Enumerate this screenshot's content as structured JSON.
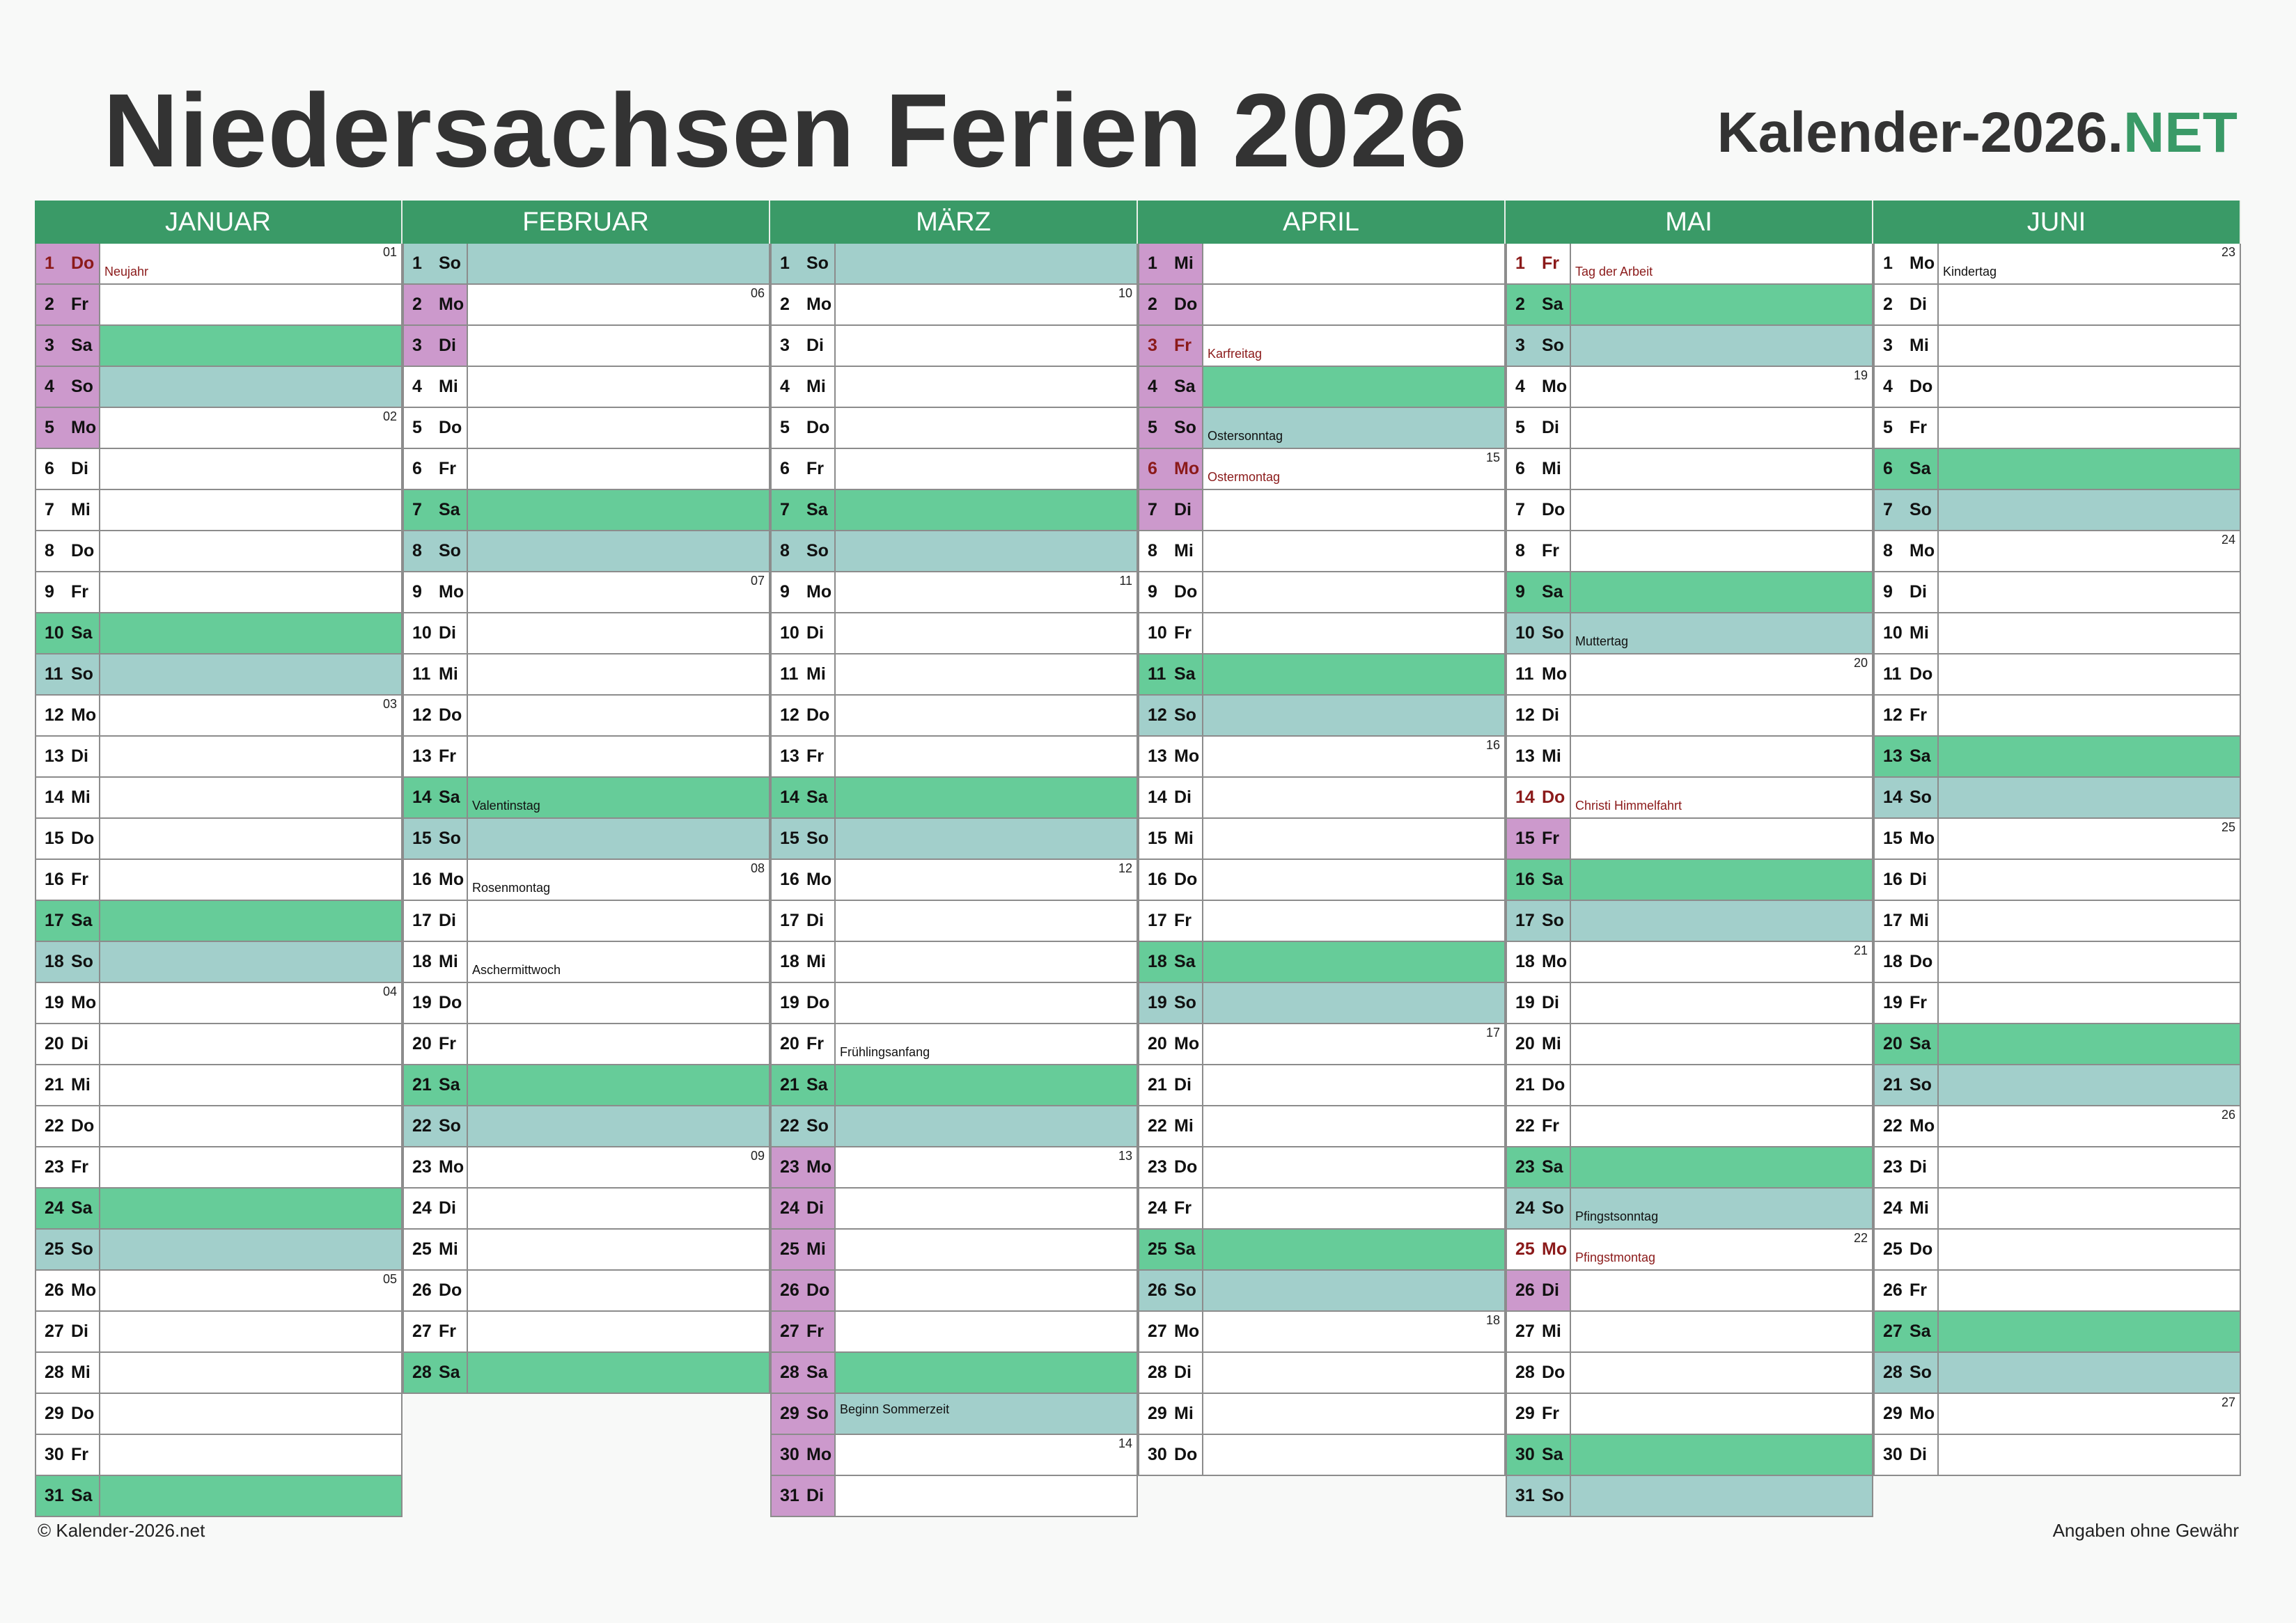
{
  "title": "Niedersachsen Ferien 2026",
  "brand": {
    "main": "Kalender-2026.",
    "accent": "NET"
  },
  "footer": {
    "left": "© Kalender-2026.net",
    "right": "Angaben ohne Gewähr"
  },
  "colors": {
    "header": "#3a9a67",
    "saturday": "#66cc99",
    "sunday": "#a2cfcb",
    "ferien": "#cc99cc",
    "holiday_text": "#8b1a1a"
  },
  "months": [
    {
      "name": "JANUAR",
      "days": [
        {
          "d": "1",
          "w": "Do",
          "ferien": true,
          "hol": true,
          "note": "Neujahr",
          "week": "01"
        },
        {
          "d": "2",
          "w": "Fr",
          "ferien": true
        },
        {
          "d": "3",
          "w": "Sa",
          "ferien": true
        },
        {
          "d": "4",
          "w": "So",
          "ferien": true
        },
        {
          "d": "5",
          "w": "Mo",
          "ferien": true,
          "week": "02"
        },
        {
          "d": "6",
          "w": "Di"
        },
        {
          "d": "7",
          "w": "Mi"
        },
        {
          "d": "8",
          "w": "Do"
        },
        {
          "d": "9",
          "w": "Fr"
        },
        {
          "d": "10",
          "w": "Sa"
        },
        {
          "d": "11",
          "w": "So"
        },
        {
          "d": "12",
          "w": "Mo",
          "week": "03"
        },
        {
          "d": "13",
          "w": "Di"
        },
        {
          "d": "14",
          "w": "Mi"
        },
        {
          "d": "15",
          "w": "Do"
        },
        {
          "d": "16",
          "w": "Fr"
        },
        {
          "d": "17",
          "w": "Sa"
        },
        {
          "d": "18",
          "w": "So"
        },
        {
          "d": "19",
          "w": "Mo",
          "week": "04"
        },
        {
          "d": "20",
          "w": "Di"
        },
        {
          "d": "21",
          "w": "Mi"
        },
        {
          "d": "22",
          "w": "Do"
        },
        {
          "d": "23",
          "w": "Fr"
        },
        {
          "d": "24",
          "w": "Sa"
        },
        {
          "d": "25",
          "w": "So"
        },
        {
          "d": "26",
          "w": "Mo",
          "week": "05"
        },
        {
          "d": "27",
          "w": "Di"
        },
        {
          "d": "28",
          "w": "Mi"
        },
        {
          "d": "29",
          "w": "Do"
        },
        {
          "d": "30",
          "w": "Fr"
        },
        {
          "d": "31",
          "w": "Sa"
        }
      ]
    },
    {
      "name": "FEBRUAR",
      "days": [
        {
          "d": "1",
          "w": "So"
        },
        {
          "d": "2",
          "w": "Mo",
          "ferien": true,
          "week": "06"
        },
        {
          "d": "3",
          "w": "Di",
          "ferien": true
        },
        {
          "d": "4",
          "w": "Mi"
        },
        {
          "d": "5",
          "w": "Do"
        },
        {
          "d": "6",
          "w": "Fr"
        },
        {
          "d": "7",
          "w": "Sa"
        },
        {
          "d": "8",
          "w": "So"
        },
        {
          "d": "9",
          "w": "Mo",
          "week": "07"
        },
        {
          "d": "10",
          "w": "Di"
        },
        {
          "d": "11",
          "w": "Mi"
        },
        {
          "d": "12",
          "w": "Do"
        },
        {
          "d": "13",
          "w": "Fr"
        },
        {
          "d": "14",
          "w": "Sa",
          "note": "Valentinstag"
        },
        {
          "d": "15",
          "w": "So"
        },
        {
          "d": "16",
          "w": "Mo",
          "note": "Rosenmontag",
          "week": "08"
        },
        {
          "d": "17",
          "w": "Di"
        },
        {
          "d": "18",
          "w": "Mi",
          "note": "Aschermittwoch"
        },
        {
          "d": "19",
          "w": "Do"
        },
        {
          "d": "20",
          "w": "Fr"
        },
        {
          "d": "21",
          "w": "Sa"
        },
        {
          "d": "22",
          "w": "So"
        },
        {
          "d": "23",
          "w": "Mo",
          "week": "09"
        },
        {
          "d": "24",
          "w": "Di"
        },
        {
          "d": "25",
          "w": "Mi"
        },
        {
          "d": "26",
          "w": "Do"
        },
        {
          "d": "27",
          "w": "Fr"
        },
        {
          "d": "28",
          "w": "Sa"
        }
      ]
    },
    {
      "name": "MÄRZ",
      "days": [
        {
          "d": "1",
          "w": "So"
        },
        {
          "d": "2",
          "w": "Mo",
          "week": "10"
        },
        {
          "d": "3",
          "w": "Di"
        },
        {
          "d": "4",
          "w": "Mi"
        },
        {
          "d": "5",
          "w": "Do"
        },
        {
          "d": "6",
          "w": "Fr"
        },
        {
          "d": "7",
          "w": "Sa"
        },
        {
          "d": "8",
          "w": "So"
        },
        {
          "d": "9",
          "w": "Mo",
          "week": "11"
        },
        {
          "d": "10",
          "w": "Di"
        },
        {
          "d": "11",
          "w": "Mi"
        },
        {
          "d": "12",
          "w": "Do"
        },
        {
          "d": "13",
          "w": "Fr"
        },
        {
          "d": "14",
          "w": "Sa"
        },
        {
          "d": "15",
          "w": "So"
        },
        {
          "d": "16",
          "w": "Mo",
          "week": "12"
        },
        {
          "d": "17",
          "w": "Di"
        },
        {
          "d": "18",
          "w": "Mi"
        },
        {
          "d": "19",
          "w": "Do"
        },
        {
          "d": "20",
          "w": "Fr",
          "note": "Frühlingsanfang"
        },
        {
          "d": "21",
          "w": "Sa"
        },
        {
          "d": "22",
          "w": "So"
        },
        {
          "d": "23",
          "w": "Mo",
          "ferien": true,
          "week": "13"
        },
        {
          "d": "24",
          "w": "Di",
          "ferien": true
        },
        {
          "d": "25",
          "w": "Mi",
          "ferien": true
        },
        {
          "d": "26",
          "w": "Do",
          "ferien": true
        },
        {
          "d": "27",
          "w": "Fr",
          "ferien": true
        },
        {
          "d": "28",
          "w": "Sa",
          "ferien": true
        },
        {
          "d": "29",
          "w": "So",
          "ferien": true,
          "note": "Beginn Sommerzeit",
          "two": true
        },
        {
          "d": "30",
          "w": "Mo",
          "ferien": true,
          "week": "14"
        },
        {
          "d": "31",
          "w": "Di",
          "ferien": true
        }
      ]
    },
    {
      "name": "APRIL",
      "days": [
        {
          "d": "1",
          "w": "Mi",
          "ferien": true
        },
        {
          "d": "2",
          "w": "Do",
          "ferien": true
        },
        {
          "d": "3",
          "w": "Fr",
          "ferien": true,
          "hol": true,
          "note": "Karfreitag"
        },
        {
          "d": "4",
          "w": "Sa",
          "ferien": true
        },
        {
          "d": "5",
          "w": "So",
          "ferien": true,
          "note": "Ostersonntag"
        },
        {
          "d": "6",
          "w": "Mo",
          "ferien": true,
          "hol": true,
          "note": "Ostermontag",
          "week": "15"
        },
        {
          "d": "7",
          "w": "Di",
          "ferien": true
        },
        {
          "d": "8",
          "w": "Mi"
        },
        {
          "d": "9",
          "w": "Do"
        },
        {
          "d": "10",
          "w": "Fr"
        },
        {
          "d": "11",
          "w": "Sa"
        },
        {
          "d": "12",
          "w": "So"
        },
        {
          "d": "13",
          "w": "Mo",
          "week": "16"
        },
        {
          "d": "14",
          "w": "Di"
        },
        {
          "d": "15",
          "w": "Mi"
        },
        {
          "d": "16",
          "w": "Do"
        },
        {
          "d": "17",
          "w": "Fr"
        },
        {
          "d": "18",
          "w": "Sa"
        },
        {
          "d": "19",
          "w": "So"
        },
        {
          "d": "20",
          "w": "Mo",
          "week": "17"
        },
        {
          "d": "21",
          "w": "Di"
        },
        {
          "d": "22",
          "w": "Mi"
        },
        {
          "d": "23",
          "w": "Do"
        },
        {
          "d": "24",
          "w": "Fr"
        },
        {
          "d": "25",
          "w": "Sa"
        },
        {
          "d": "26",
          "w": "So"
        },
        {
          "d": "27",
          "w": "Mo",
          "week": "18"
        },
        {
          "d": "28",
          "w": "Di"
        },
        {
          "d": "29",
          "w": "Mi"
        },
        {
          "d": "30",
          "w": "Do"
        }
      ]
    },
    {
      "name": "MAI",
      "days": [
        {
          "d": "1",
          "w": "Fr",
          "hol": true,
          "note": "Tag der Arbeit"
        },
        {
          "d": "2",
          "w": "Sa"
        },
        {
          "d": "3",
          "w": "So"
        },
        {
          "d": "4",
          "w": "Mo",
          "week": "19"
        },
        {
          "d": "5",
          "w": "Di"
        },
        {
          "d": "6",
          "w": "Mi"
        },
        {
          "d": "7",
          "w": "Do"
        },
        {
          "d": "8",
          "w": "Fr"
        },
        {
          "d": "9",
          "w": "Sa"
        },
        {
          "d": "10",
          "w": "So",
          "note": "Muttertag"
        },
        {
          "d": "11",
          "w": "Mo",
          "week": "20"
        },
        {
          "d": "12",
          "w": "Di"
        },
        {
          "d": "13",
          "w": "Mi"
        },
        {
          "d": "14",
          "w": "Do",
          "hol": true,
          "note": "Christi Himmelfahrt"
        },
        {
          "d": "15",
          "w": "Fr",
          "ferien": true
        },
        {
          "d": "16",
          "w": "Sa"
        },
        {
          "d": "17",
          "w": "So"
        },
        {
          "d": "18",
          "w": "Mo",
          "week": "21"
        },
        {
          "d": "19",
          "w": "Di"
        },
        {
          "d": "20",
          "w": "Mi"
        },
        {
          "d": "21",
          "w": "Do"
        },
        {
          "d": "22",
          "w": "Fr"
        },
        {
          "d": "23",
          "w": "Sa"
        },
        {
          "d": "24",
          "w": "So",
          "note": "Pfingstsonntag"
        },
        {
          "d": "25",
          "w": "Mo",
          "hol": true,
          "note": "Pfingstmontag",
          "week": "22"
        },
        {
          "d": "26",
          "w": "Di",
          "ferien": true
        },
        {
          "d": "27",
          "w": "Mi"
        },
        {
          "d": "28",
          "w": "Do"
        },
        {
          "d": "29",
          "w": "Fr"
        },
        {
          "d": "30",
          "w": "Sa"
        },
        {
          "d": "31",
          "w": "So"
        }
      ]
    },
    {
      "name": "JUNI",
      "days": [
        {
          "d": "1",
          "w": "Mo",
          "note": "Kindertag",
          "week": "23"
        },
        {
          "d": "2",
          "w": "Di"
        },
        {
          "d": "3",
          "w": "Mi"
        },
        {
          "d": "4",
          "w": "Do"
        },
        {
          "d": "5",
          "w": "Fr"
        },
        {
          "d": "6",
          "w": "Sa"
        },
        {
          "d": "7",
          "w": "So"
        },
        {
          "d": "8",
          "w": "Mo",
          "week": "24"
        },
        {
          "d": "9",
          "w": "Di"
        },
        {
          "d": "10",
          "w": "Mi"
        },
        {
          "d": "11",
          "w": "Do"
        },
        {
          "d": "12",
          "w": "Fr"
        },
        {
          "d": "13",
          "w": "Sa"
        },
        {
          "d": "14",
          "w": "So"
        },
        {
          "d": "15",
          "w": "Mo",
          "week": "25"
        },
        {
          "d": "16",
          "w": "Di"
        },
        {
          "d": "17",
          "w": "Mi"
        },
        {
          "d": "18",
          "w": "Do"
        },
        {
          "d": "19",
          "w": "Fr"
        },
        {
          "d": "20",
          "w": "Sa"
        },
        {
          "d": "21",
          "w": "So"
        },
        {
          "d": "22",
          "w": "Mo",
          "week": "26"
        },
        {
          "d": "23",
          "w": "Di"
        },
        {
          "d": "24",
          "w": "Mi"
        },
        {
          "d": "25",
          "w": "Do"
        },
        {
          "d": "26",
          "w": "Fr"
        },
        {
          "d": "27",
          "w": "Sa"
        },
        {
          "d": "28",
          "w": "So"
        },
        {
          "d": "29",
          "w": "Mo",
          "week": "27"
        },
        {
          "d": "30",
          "w": "Di"
        }
      ]
    }
  ]
}
